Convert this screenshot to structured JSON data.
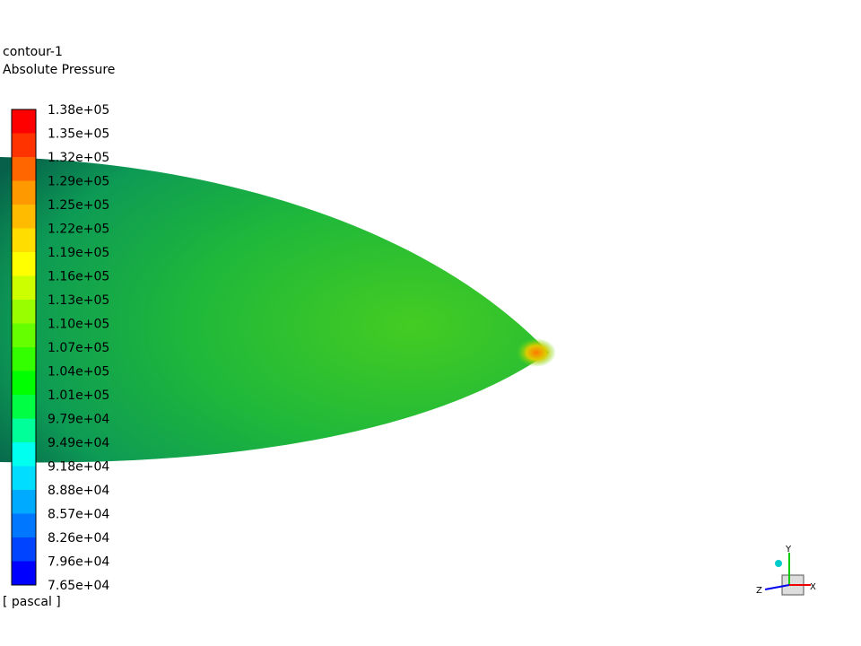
{
  "header": {
    "title": "contour-1",
    "subtitle": "Absolute Pressure"
  },
  "legend": {
    "labels": [
      "1.38e+05",
      "1.35e+05",
      "1.32e+05",
      "1.29e+05",
      "1.25e+05",
      "1.22e+05",
      "1.19e+05",
      "1.16e+05",
      "1.13e+05",
      "1.10e+05",
      "1.07e+05",
      "1.04e+05",
      "1.01e+05",
      "9.79e+04",
      "9.49e+04",
      "9.18e+04",
      "8.88e+04",
      "8.57e+04",
      "8.26e+04",
      "7.96e+04",
      "7.65e+04"
    ],
    "colors": [
      "#ff0000",
      "#ff3300",
      "#ff6600",
      "#ff9900",
      "#ffbb00",
      "#ffdd00",
      "#ffff00",
      "#ccff00",
      "#99ff00",
      "#66ff00",
      "#33ff00",
      "#00ff00",
      "#00ff44",
      "#00ff99",
      "#00ffee",
      "#00ddff",
      "#00aaff",
      "#0077ff",
      "#0044ff",
      "#0000ff"
    ],
    "unit": "[ pascal ]"
  },
  "triad": {
    "y": "Y",
    "z": "Z",
    "x": "X"
  }
}
